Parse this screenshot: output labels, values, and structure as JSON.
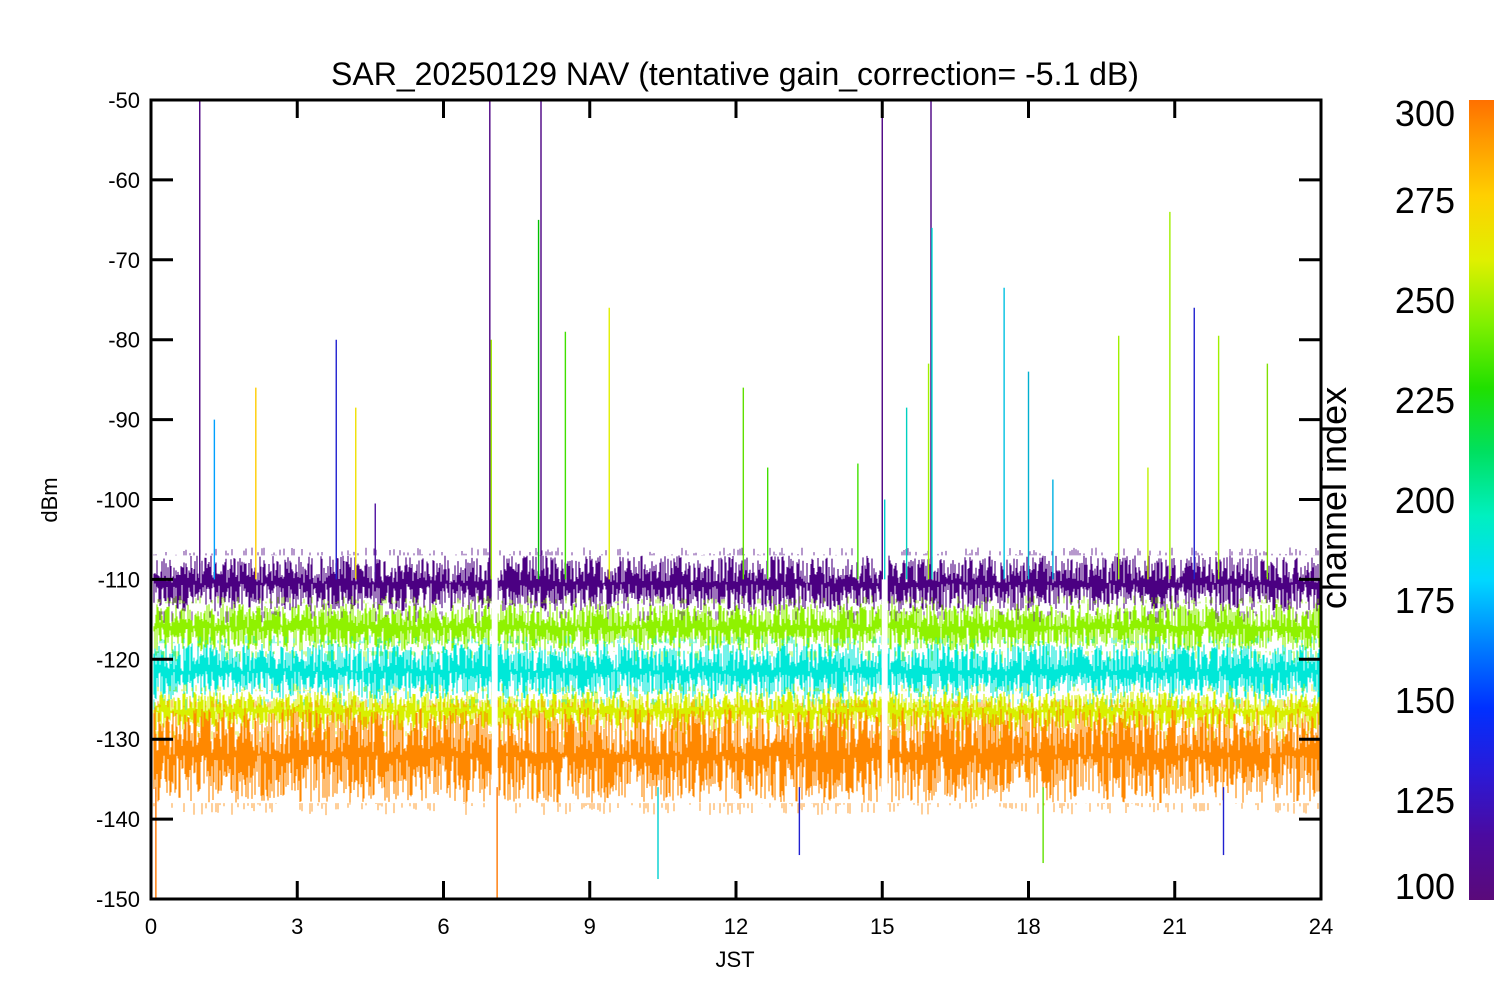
{
  "chart_data": {
    "type": "line",
    "title": "SAR_20250129 NAV (tentative gain_correction= -5.1 dB)",
    "xlabel": "JST",
    "ylabel": "dBm",
    "xlim": [
      0,
      24
    ],
    "ylim": [
      -150,
      -50
    ],
    "x_ticks": [
      "0",
      "3",
      "6",
      "9",
      "12",
      "15",
      "18",
      "21",
      "24"
    ],
    "y_ticks": [
      "-50",
      "-60",
      "-70",
      "-80",
      "-90",
      "-100",
      "-110",
      "-120",
      "-130",
      "-140",
      "-150"
    ],
    "grid": false,
    "colorbar": {
      "label": "channel index",
      "range": [
        100,
        300
      ],
      "ticks": [
        "300",
        "275",
        "250",
        "225",
        "200",
        "175",
        "150",
        "125",
        "100"
      ],
      "colormap": "rainbow (purple to orange)"
    },
    "data_gaps_jst": [
      7.05,
      15.05
    ],
    "series": [
      {
        "channel_range": [
          100,
          130
        ],
        "color": "#4b0082",
        "level_dBm": [
          -114,
          -107
        ]
      },
      {
        "channel_range": [
          230,
          260
        ],
        "color": "#8ff200",
        "level_dBm": [
          -119,
          -113
        ]
      },
      {
        "channel_range": [
          170,
          200
        ],
        "color": "#00e8d8",
        "level_dBm": [
          -125,
          -118
        ]
      },
      {
        "channel_range": [
          260,
          290
        ],
        "color": "#d8f000",
        "level_dBm": [
          -129,
          -124
        ]
      },
      {
        "channel_range": [
          290,
          300
        ],
        "color": "#ff8800",
        "level_dBm": [
          -138,
          -126
        ]
      }
    ],
    "spikes": [
      {
        "x": 0.1,
        "y": -150,
        "color": "#ff7700"
      },
      {
        "x": 1.0,
        "y": -50,
        "color": "#4b0082"
      },
      {
        "x": 1.3,
        "y": -90,
        "color": "#00a0ff"
      },
      {
        "x": 2.15,
        "y": -86,
        "color": "#ffcc00"
      },
      {
        "x": 3.8,
        "y": -80,
        "color": "#2020d0"
      },
      {
        "x": 4.2,
        "y": -88.5,
        "color": "#f0e000"
      },
      {
        "x": 4.6,
        "y": -100.5,
        "color": "#5010a0"
      },
      {
        "x": 6.95,
        "y": -50,
        "color": "#4b0082"
      },
      {
        "x": 6.98,
        "y": -80,
        "color": "#a0f000"
      },
      {
        "x": 7.1,
        "y": -150,
        "color": "#ff7700"
      },
      {
        "x": 7.95,
        "y": -65,
        "color": "#00c000"
      },
      {
        "x": 8.0,
        "y": -50,
        "color": "#4b0082"
      },
      {
        "x": 8.5,
        "y": -79,
        "color": "#40e000"
      },
      {
        "x": 9.4,
        "y": -76,
        "color": "#e0f000"
      },
      {
        "x": 10.4,
        "y": -147.5,
        "color": "#00d0d0"
      },
      {
        "x": 12.15,
        "y": -86,
        "color": "#60e000"
      },
      {
        "x": 12.65,
        "y": -96,
        "color": "#40e000"
      },
      {
        "x": 13.3,
        "y": -144.5,
        "color": "#2020d0"
      },
      {
        "x": 14.5,
        "y": -95.5,
        "color": "#40e000"
      },
      {
        "x": 15.0,
        "y": -50,
        "color": "#4b0082"
      },
      {
        "x": 15.05,
        "y": -100,
        "color": "#00d0d0"
      },
      {
        "x": 15.5,
        "y": -88.5,
        "color": "#00d0c0"
      },
      {
        "x": 16.0,
        "y": -50,
        "color": "#4b0082"
      },
      {
        "x": 16.02,
        "y": -66,
        "color": "#00e0d0"
      },
      {
        "x": 15.95,
        "y": -83,
        "color": "#a0f000"
      },
      {
        "x": 17.5,
        "y": -73.5,
        "color": "#00c0e0"
      },
      {
        "x": 18.0,
        "y": -84,
        "color": "#00b0d0"
      },
      {
        "x": 18.3,
        "y": -145.5,
        "color": "#60e000"
      },
      {
        "x": 18.5,
        "y": -97.5,
        "color": "#00b0e0"
      },
      {
        "x": 19.85,
        "y": -79.5,
        "color": "#a0f000"
      },
      {
        "x": 20.45,
        "y": -96,
        "color": "#c0f000"
      },
      {
        "x": 20.9,
        "y": -64,
        "color": "#a0f000"
      },
      {
        "x": 21.4,
        "y": -76,
        "color": "#2020d0"
      },
      {
        "x": 21.9,
        "y": -79.5,
        "color": "#a0f000"
      },
      {
        "x": 22.0,
        "y": -144.5,
        "color": "#2020d0"
      },
      {
        "x": 22.9,
        "y": -83,
        "color": "#80e000"
      }
    ]
  }
}
